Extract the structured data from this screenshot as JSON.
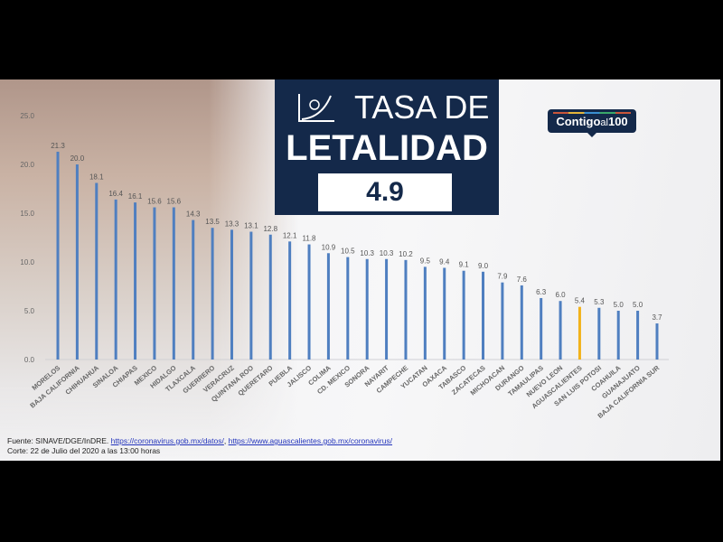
{
  "header": {
    "title_line1": "TASA DE",
    "title_line2": "LETALIDAD",
    "rate": "4.9",
    "logo_main": "Contigo",
    "logo_small": "al",
    "logo_num": "100"
  },
  "footer": {
    "source_prefix": "Fuente: SINAVE/DGE/InDRE.",
    "link1": "https://coronavirus.gob.mx/datos/",
    "sep": ",",
    "link2": "https://www.aguascalientes.gob.mx/coronavirus/",
    "cutoff": "Corte: 22 de Julio del 2020 a las 13:00 horas"
  },
  "chart_data": {
    "type": "bar",
    "title": "TASA DE LETALIDAD",
    "xlabel": "",
    "ylabel": "",
    "ylim": [
      0,
      25
    ],
    "yticks": [
      "0.0",
      "5.0",
      "10.0",
      "15.0",
      "20.0",
      "25.0"
    ],
    "categories": [
      "MORELOS",
      "BAJA CALIFORNIA",
      "CHIHUAHUA",
      "SINALOA",
      "CHIAPAS",
      "MEXICO",
      "HIDALGO",
      "TLAXCALA",
      "GUERRERO",
      "VERACRUZ",
      "QUINTANA ROO",
      "QUERETARO",
      "PUEBLA",
      "JALISCO",
      "COLIMA",
      "CD. MEXICO",
      "SONORA",
      "NAYARIT",
      "CAMPECHE",
      "YUCATAN",
      "OAXACA",
      "TABASCO",
      "ZACATECAS",
      "MICHOACAN",
      "DURANGO",
      "TAMAULIPAS",
      "NUEVO LEON",
      "AGUASCALIENTES",
      "SAN LUIS POTOSI",
      "COAHUILA",
      "GUANAJUATO",
      "BAJA CALIFORNIA SUR"
    ],
    "values": [
      21.3,
      20.0,
      18.1,
      16.4,
      16.1,
      15.6,
      15.6,
      14.3,
      13.5,
      13.3,
      13.1,
      12.8,
      12.1,
      11.8,
      10.9,
      10.5,
      10.3,
      10.3,
      10.2,
      9.5,
      9.4,
      9.1,
      9.0,
      7.9,
      7.6,
      6.3,
      6.0,
      5.4,
      5.3,
      5.0,
      5.0,
      3.7
    ],
    "labels": [
      "21.3",
      "20.0",
      "18.1",
      "16.4",
      "16.1",
      "15.6",
      "15.6",
      "14.3",
      "13.5",
      "13.3",
      "13.1",
      "12.8",
      "12.1",
      "11.8",
      "10.9",
      "10.5",
      "10.3",
      "10.3",
      "10.2",
      "9.5",
      "9.4",
      "9.1",
      "9.0",
      "7.9",
      "7.6",
      "6.3",
      "6.0",
      "5.4",
      "5.3",
      "5.0",
      "5.0",
      "3.7"
    ],
    "highlight_index": 27,
    "colors": {
      "bar": "#4f7fc0",
      "highlight": "#f2b21b",
      "title_bg": "#14294a"
    },
    "grid": false,
    "legend": "none"
  }
}
